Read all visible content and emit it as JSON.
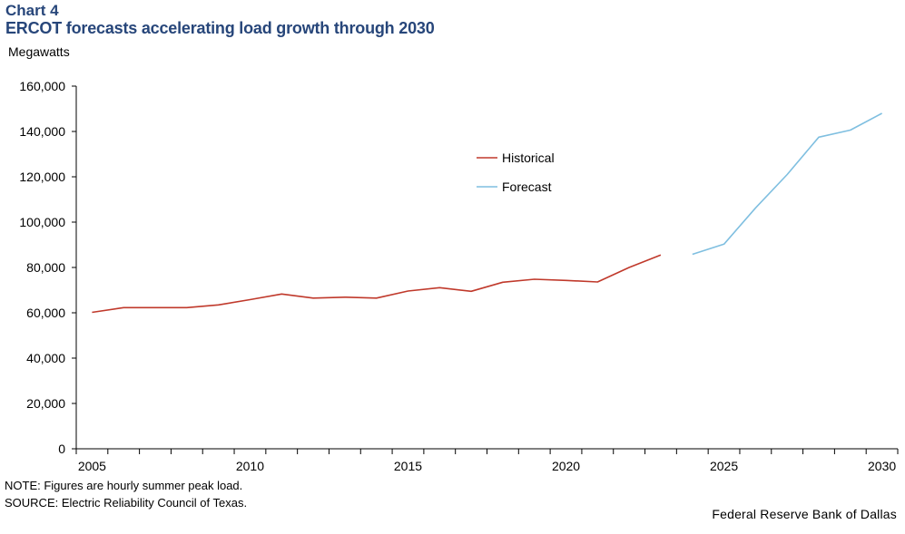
{
  "header": {
    "chart_label": "Chart 4",
    "title": "ERCOT forecasts accelerating load growth through 2030"
  },
  "footer": {
    "note": "NOTE: Figures are hourly summer peak load.",
    "source": "SOURCE: Electric Reliability Council of Texas.",
    "credit": "Federal Reserve Bank of Dallas"
  },
  "colors": {
    "historical": "#c0392b",
    "forecast": "#7fbfe0",
    "axis": "#000000"
  },
  "chart_data": {
    "type": "line",
    "title": "ERCOT forecasts accelerating load growth through 2030",
    "xlabel": "",
    "ylabel": "Megawatts",
    "xlim": [
      2004.5,
      2030.5
    ],
    "ylim": [
      0,
      160000
    ],
    "y_ticks": [
      0,
      20000,
      40000,
      60000,
      80000,
      100000,
      120000,
      140000,
      160000
    ],
    "y_tick_labels": [
      "0",
      "20,000",
      "40,000",
      "60,000",
      "80,000",
      "100,000",
      "120,000",
      "140,000",
      "160,000"
    ],
    "x_tick_labels": [
      "2005",
      "2010",
      "2015",
      "2020",
      "2025",
      "2030"
    ],
    "x_tick_values": [
      2005,
      2010,
      2015,
      2020,
      2025,
      2030
    ],
    "legend_position": "top-center",
    "series": [
      {
        "name": "Historical",
        "x": [
          2005,
          2006,
          2007,
          2008,
          2009,
          2010,
          2011,
          2012,
          2013,
          2014,
          2015,
          2016,
          2017,
          2018,
          2019,
          2020,
          2021,
          2022,
          2023
        ],
        "values": [
          60200,
          62300,
          62300,
          62300,
          63500,
          65800,
          68300,
          66500,
          66900,
          66500,
          69600,
          71100,
          69500,
          73500,
          74800,
          74300,
          73600,
          80000,
          85500
        ]
      },
      {
        "name": "Forecast",
        "x": [
          2024,
          2025,
          2026,
          2027,
          2028,
          2029,
          2030
        ],
        "values": [
          85800,
          90300,
          106300,
          121000,
          137500,
          140600,
          148000
        ]
      }
    ]
  }
}
